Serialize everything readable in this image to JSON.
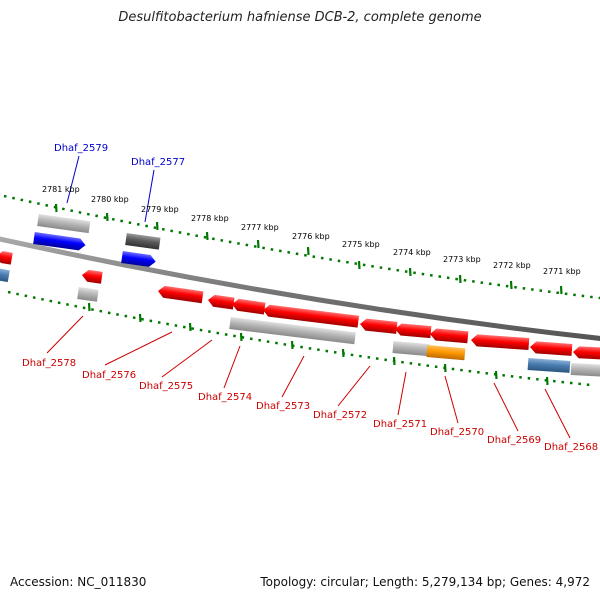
{
  "title": "Desulfitobacterium hafniense DCB-2, complete genome",
  "footer": {
    "accession": "Accession: NC_011830",
    "topology": "Topology: circular; Length: 5,279,134 bp; Genes: 4,972"
  },
  "colors": {
    "forward_gene": "#0000ee",
    "reverse_gene": "#ee0000",
    "gray_gene": "#aaaaaa",
    "dark_gene": "#555555",
    "blue_gene": "#4477aa",
    "orange_gene": "#ff9900",
    "tick": "#006600",
    "backbone": "#777777",
    "label_top": "#0000cc",
    "label_bottom": "#cc0000"
  },
  "ticks": [
    {
      "label": "2781 kbp"
    },
    {
      "label": "2780 kbp"
    },
    {
      "label": "2779 kbp"
    },
    {
      "label": "2778 kbp"
    },
    {
      "label": "2777 kbp"
    },
    {
      "label": "2776 kbp"
    },
    {
      "label": "2775 kbp"
    },
    {
      "label": "2774 kbp"
    },
    {
      "label": "2773 kbp"
    },
    {
      "label": "2772 kbp"
    },
    {
      "label": "2771 kbp"
    }
  ],
  "top_labels": [
    {
      "label": "Dhaf_2579"
    },
    {
      "label": "Dhaf_2577"
    }
  ],
  "bottom_labels": [
    {
      "label": "Dhaf_2578"
    },
    {
      "label": "Dhaf_2576"
    },
    {
      "label": "Dhaf_2575"
    },
    {
      "label": "Dhaf_2574"
    },
    {
      "label": "Dhaf_2573"
    },
    {
      "label": "Dhaf_2572"
    },
    {
      "label": "Dhaf_2571"
    },
    {
      "label": "Dhaf_2570"
    },
    {
      "label": "Dhaf_2569"
    },
    {
      "label": "Dhaf_2568"
    }
  ]
}
